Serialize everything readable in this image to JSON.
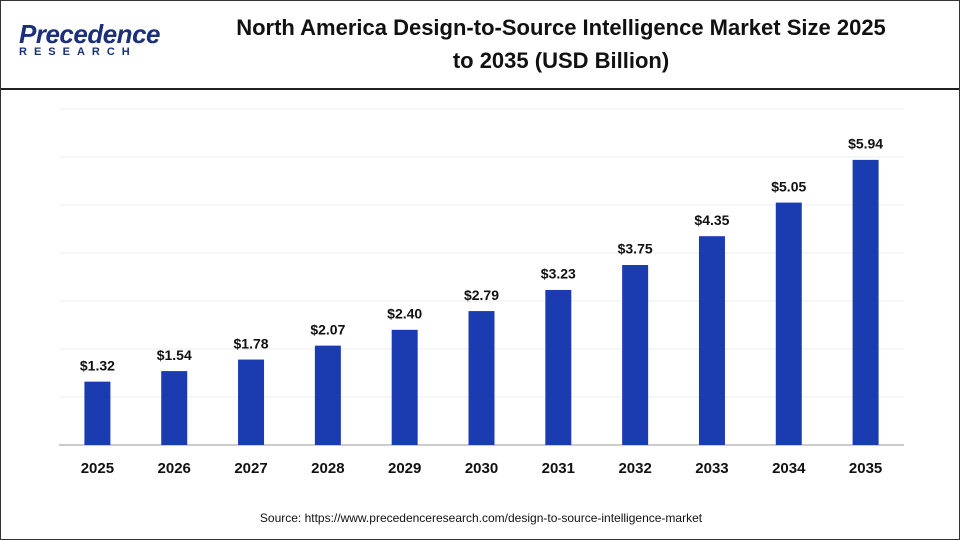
{
  "logo": {
    "name": "Precedence",
    "tagline": "RESEARCH"
  },
  "chart_data": {
    "type": "bar",
    "title": "North America Design-to-Source Intelligence Market Size 2025 to 2035 (USD Billion)",
    "categories": [
      "2025",
      "2026",
      "2027",
      "2028",
      "2029",
      "2030",
      "2031",
      "2032",
      "2033",
      "2034",
      "2035"
    ],
    "values": [
      1.32,
      1.54,
      1.78,
      2.07,
      2.4,
      2.79,
      3.23,
      3.75,
      4.35,
      5.05,
      5.94
    ],
    "value_labels": [
      "$1.32",
      "$1.54",
      "$1.78",
      "$2.07",
      "$2.40",
      "$2.79",
      "$3.23",
      "$3.75",
      "$4.35",
      "$5.05",
      "$5.94"
    ],
    "color": "#1b3cb0",
    "ylim": [
      0,
      7
    ],
    "yticks": [
      0,
      1,
      2,
      3,
      4,
      5,
      6,
      7
    ],
    "grid": true,
    "source": "Source: https://www.precedenceresearch.com/design-to-source-intelligence-market"
  }
}
